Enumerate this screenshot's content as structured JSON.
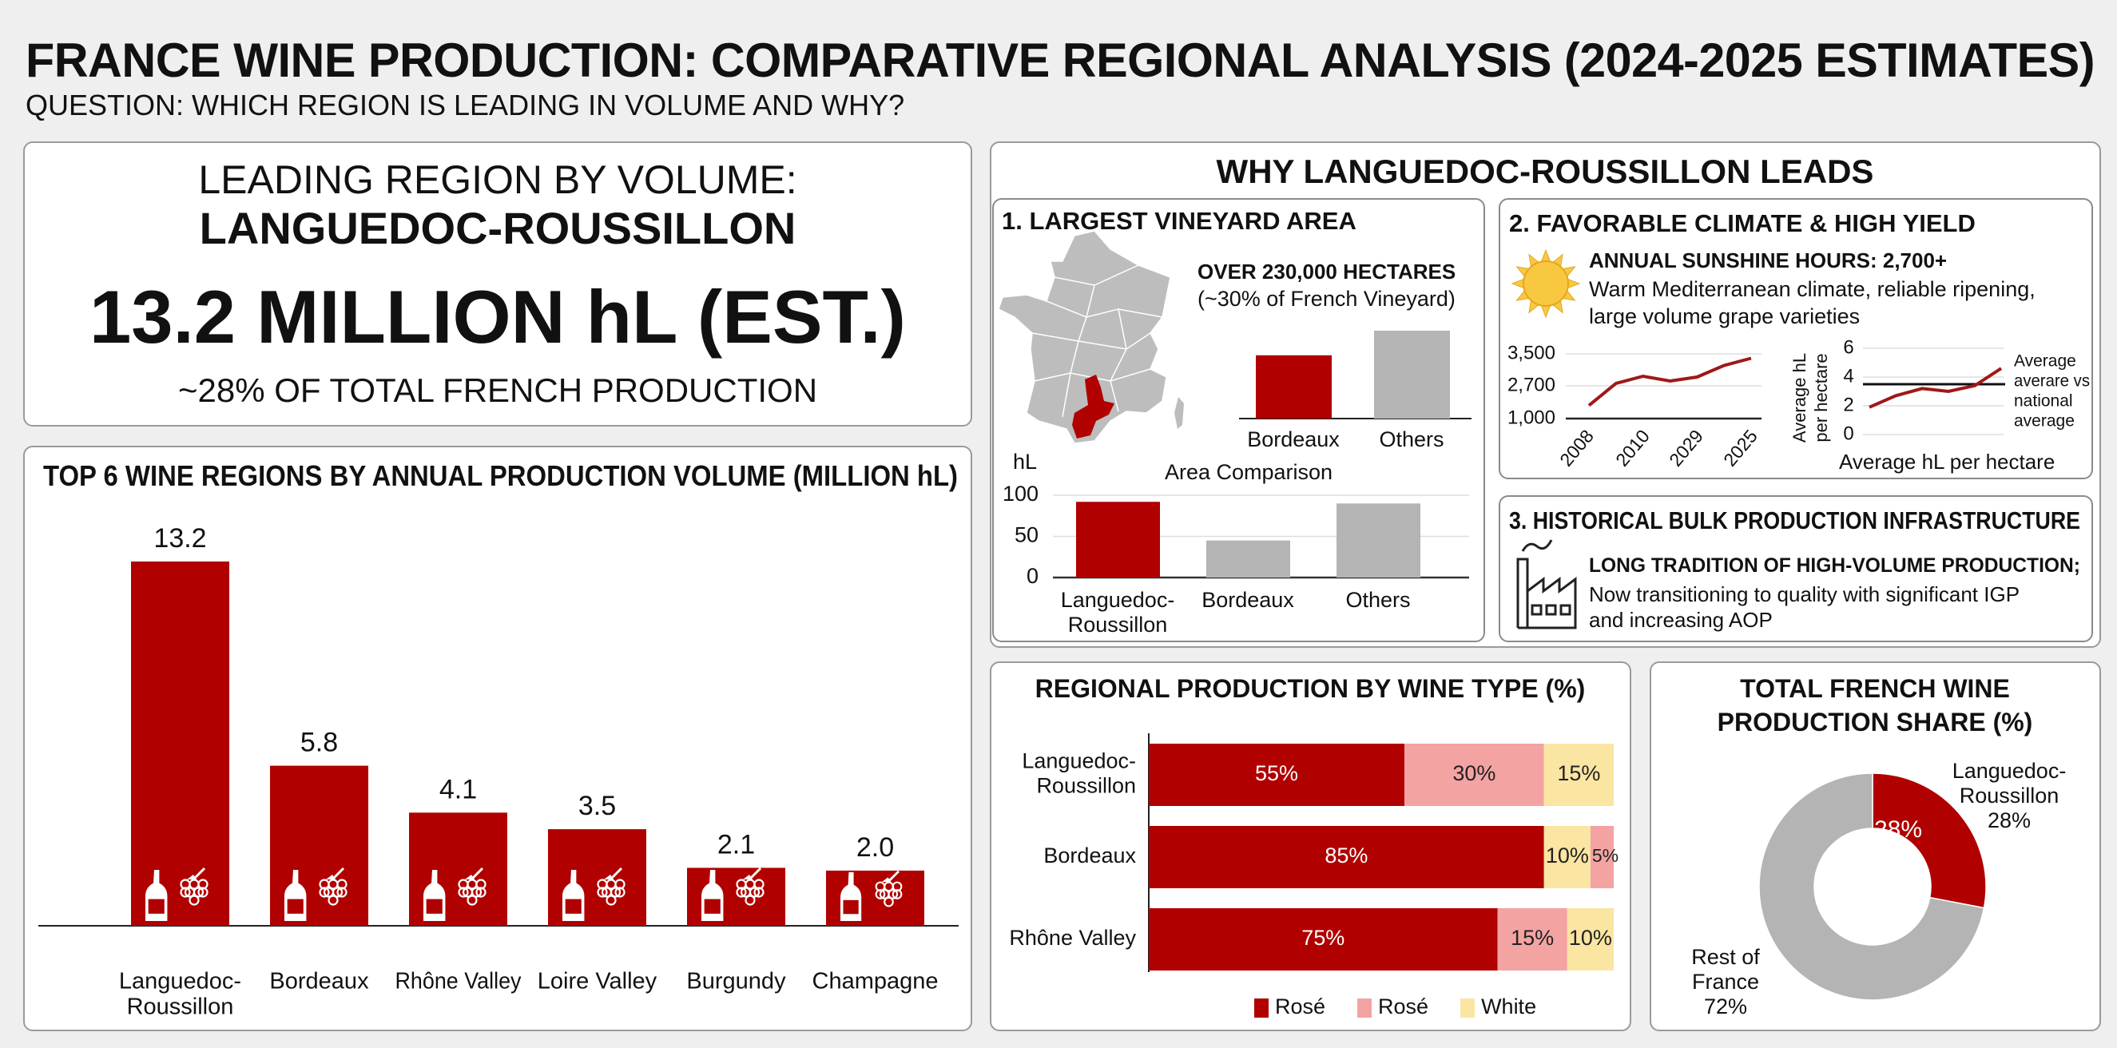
{
  "title": "FRANCE WINE PRODUCTION: COMPARATIVE REGIONAL ANALYSIS (2024-2025 ESTIMATES)",
  "subtitle": "QUESTION: WHICH REGION IS LEADING IN VOLUME AND WHY?",
  "headline": {
    "label": "LEADING REGION BY VOLUME:",
    "region": "LANGUEDOC-ROUSSILLON",
    "volume": "13.2 MILLION hL (EST.)",
    "share": "~28% OF TOTAL FRENCH PRODUCTION"
  },
  "why": {
    "title": "WHY LANGUEDOC-ROUSSILLON LEADS",
    "section1": {
      "title": "1. LARGEST VINEYARD AREA",
      "headline": "OVER 230,000 HECTARES",
      "sub": "(~30% of French Vineyard)"
    },
    "section2": {
      "title": "2. FAVORABLE CLIMATE & HIGH YIELD",
      "headline": "ANNUAL SUNSHINE HOURS: 2,700+",
      "lines": [
        "Warm Mediterranean climate, reliable ripening,",
        "large volume grape varieties"
      ]
    },
    "section3": {
      "title": "3. HISTORICAL BULK PRODUCTION INFRASTRUCTURE",
      "headline": "LONG TRADITION OF HIGH-VOLUME PRODUCTION;",
      "lines": [
        "Now transitioning to quality with significant IGP",
        "and increasing AOP"
      ]
    }
  },
  "icons": {
    "bottle": "wine-bottle-icon",
    "grapes": "grapes-icon",
    "sun": "sun-icon",
    "factory": "factory-icon",
    "map": "france-map"
  },
  "colors": {
    "red": "#b00000",
    "pink": "#f4a3a3",
    "yellow": "#fbe5a2",
    "gray": "#b4b4b4",
    "background": "#efefef"
  },
  "chart_data": [
    {
      "type": "bar",
      "title": "TOP 6 WINE REGIONS BY ANNUAL PRODUCTION VOLUME (MILLION hL)",
      "categories": [
        [
          "Languedoc-",
          "Roussillon"
        ],
        [
          "Bordeaux"
        ],
        [
          "Rhône Valley"
        ],
        [
          "Loire Valley"
        ],
        [
          "Burgundy"
        ],
        [
          "Champagne"
        ]
      ],
      "values": [
        13.2,
        5.8,
        4.1,
        3.5,
        2.1,
        2.0
      ],
      "labels": [
        "13.2",
        "5.8",
        "4.1",
        "3.5",
        "2.1",
        "2.0"
      ],
      "ylim": [
        0,
        14
      ],
      "grid": false
    },
    {
      "type": "bar",
      "categories": [
        "Bordeaux",
        "Others"
      ],
      "values": [
        72,
        100
      ],
      "colors": [
        "#b00000",
        "#b4b4b4"
      ],
      "grid": false
    },
    {
      "type": "bar",
      "title": "Area Comparison",
      "ylabel": "hL",
      "categories": [
        [
          "Languedoc-",
          "Roussillon"
        ],
        [
          "Bordeaux"
        ],
        [
          "Others"
        ]
      ],
      "values": [
        92,
        45,
        90
      ],
      "colors": [
        "#b00000",
        "#b4b4b4",
        "#b4b4b4"
      ],
      "yticks": [
        "0",
        "50",
        "100"
      ],
      "ylim": [
        0,
        100
      ],
      "grid": true
    },
    {
      "type": "line",
      "x_labels": [
        "2008",
        "2010",
        "2029",
        "2025"
      ],
      "yticks": [
        1000,
        2700,
        3500
      ],
      "ytick_labels": [
        "1,000",
        "2,700",
        "3,500"
      ],
      "values": [
        1680,
        2760,
        2940,
        2820,
        2920,
        3210,
        3390
      ],
      "color": "#a01818",
      "grid": true
    },
    {
      "type": "line",
      "ylabel": [
        "Average hL",
        "per hectare"
      ],
      "xlabel": "Average hL   per hectare",
      "yticks": [
        "0",
        "2",
        "4",
        "6"
      ],
      "ylim": [
        0,
        6
      ],
      "values": [
        1.9,
        2.7,
        3.2,
        3.0,
        3.4,
        4.6
      ],
      "reference_line": 3.5,
      "annotation": [
        "Average",
        "averare vs",
        "national",
        "average"
      ],
      "color": "#a01818",
      "grid": true
    },
    {
      "type": "bar",
      "orientation": "horizontal-stacked",
      "title": "REGIONAL PRODUCTION BY WINE TYPE (%)",
      "categories": [
        [
          "Languedoc-",
          "Roussillon"
        ],
        [
          "Bordeaux"
        ],
        [
          "Rhône Valley"
        ]
      ],
      "rows": [
        [
          {
            "series": 0,
            "value": 55
          },
          {
            "series": 1,
            "value": 30
          },
          {
            "series": 2,
            "value": 15
          }
        ],
        [
          {
            "series": 0,
            "value": 85
          },
          {
            "series": 2,
            "value": 10
          },
          {
            "series": 1,
            "value": 5
          }
        ],
        [
          {
            "series": 0,
            "value": 75
          },
          {
            "series": 1,
            "value": 15
          },
          {
            "series": 2,
            "value": 10
          }
        ]
      ],
      "series": [
        {
          "name": "Rosé",
          "color": "#b00000"
        },
        {
          "name": "Rosé",
          "color": "#f4a3a3"
        },
        {
          "name": "White",
          "color": "#fbe5a2"
        }
      ],
      "legend": "bottom",
      "xlim": [
        0,
        100
      ]
    },
    {
      "type": "pie",
      "style": "donut",
      "title": [
        "TOTAL FRENCH WINE",
        "PRODUCTION SHARE (%)"
      ],
      "slices": [
        {
          "label": [
            "Languedoc-",
            "Roussillon",
            "28%"
          ],
          "value": 28,
          "inner_label": "28%",
          "color": "#b00000"
        },
        {
          "label": [
            "Rest of",
            "France",
            "72%"
          ],
          "value": 72,
          "color": "#b4b4b4"
        }
      ]
    }
  ]
}
